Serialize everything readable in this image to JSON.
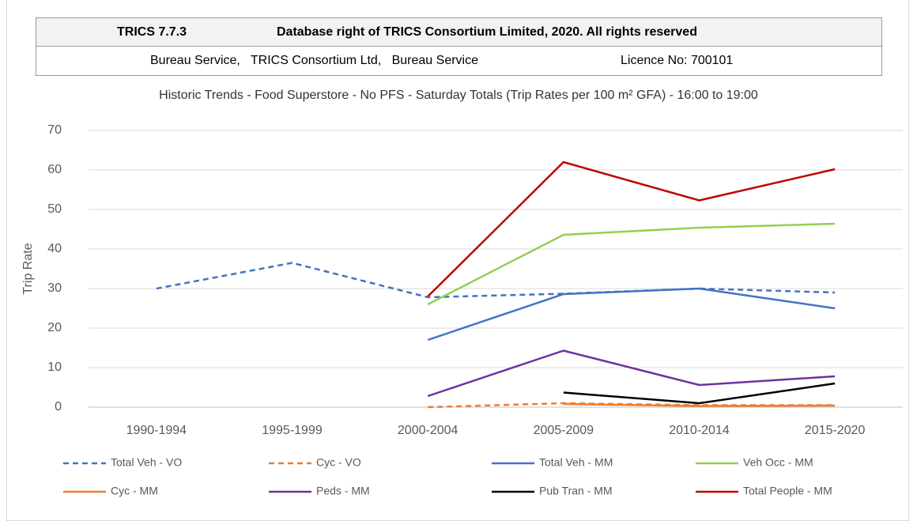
{
  "header": {
    "product": "TRICS 7.7.3",
    "copyright": "Database right of TRICS Consortium Limited, 2020. All rights reserved",
    "user": "Bureau Service,   TRICS Consortium Ltd,   Bureau Service",
    "licence": "Licence No: 700101"
  },
  "chart_data": {
    "type": "line",
    "title": "Historic Trends - Food Superstore - No PFS - Saturday Totals (Trip Rates per 100 m² GFA) - 16:00 to 19:00",
    "y_label": "Trip Rate",
    "categories": [
      "1990-1994",
      "1995-1999",
      "2000-2004",
      "2005-2009",
      "2010-2014",
      "2015-2020"
    ],
    "ylim": [
      0,
      70
    ],
    "yticks": [
      0,
      10,
      20,
      30,
      40,
      50,
      60,
      70
    ],
    "grid": true,
    "legend": "bottom",
    "series": [
      {
        "name": "Total Veh - VO",
        "color": "#4472c4",
        "dash": true,
        "values": [
          30,
          36.5,
          27.8,
          28.7,
          30,
          29
        ]
      },
      {
        "name": "Cyc - VO",
        "color": "#ed7d31",
        "dash": true,
        "values": [
          null,
          null,
          0,
          1,
          0.5,
          0.5
        ]
      },
      {
        "name": "Total Veh - MM",
        "color": "#4472c4",
        "dash": false,
        "values": [
          null,
          null,
          17,
          28.6,
          30,
          25
        ]
      },
      {
        "name": "Veh Occ - MM",
        "color": "#92d050",
        "dash": false,
        "values": [
          null,
          null,
          26,
          43.6,
          45.4,
          46.4
        ]
      },
      {
        "name": "Cyc - MM",
        "color": "#ed7d31",
        "dash": false,
        "values": [
          null,
          null,
          null,
          0.8,
          0.3,
          0.4
        ]
      },
      {
        "name": "Peds - MM",
        "color": "#7030a0",
        "dash": false,
        "values": [
          null,
          null,
          2.8,
          14.3,
          5.6,
          7.8
        ]
      },
      {
        "name": "Pub Tran - MM",
        "color": "#000000",
        "dash": false,
        "values": [
          null,
          null,
          null,
          3.7,
          1,
          6
        ]
      },
      {
        "name": "Total People - MM",
        "color": "#c00000",
        "dash": false,
        "values": [
          null,
          null,
          28,
          62,
          52.3,
          60.2
        ]
      }
    ]
  }
}
